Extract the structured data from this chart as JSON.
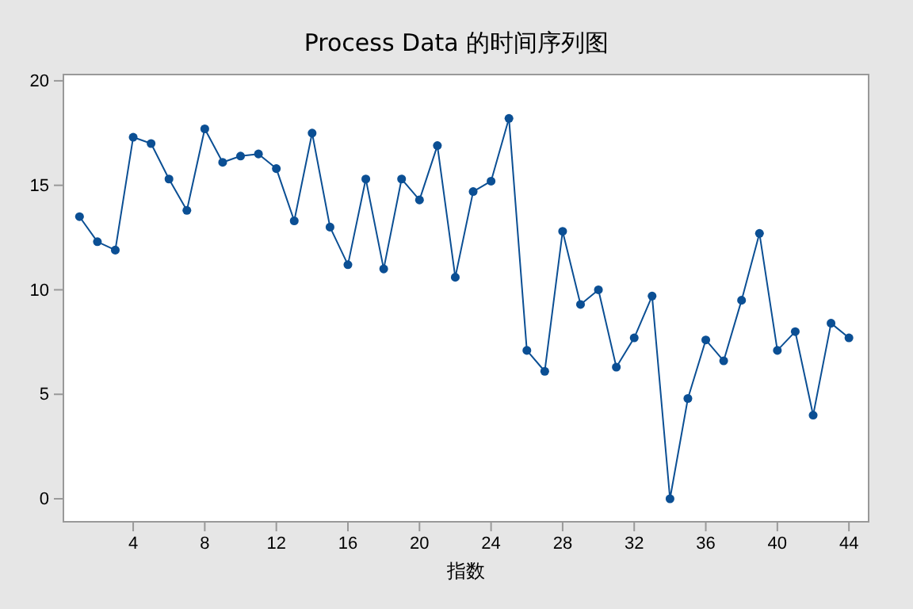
{
  "chart_data": {
    "type": "line",
    "title": "Process Data 的时间序列图",
    "xlabel": "指数",
    "x": [
      1,
      2,
      3,
      4,
      5,
      6,
      7,
      8,
      9,
      10,
      11,
      12,
      13,
      14,
      15,
      16,
      17,
      18,
      19,
      20,
      21,
      22,
      23,
      24,
      25,
      26,
      27,
      28,
      29,
      30,
      31,
      32,
      33,
      34,
      35,
      36,
      37,
      38,
      39,
      40,
      41,
      42,
      43,
      44
    ],
    "series": [
      {
        "color": "#0b4f94",
        "values": [
          13.5,
          12.3,
          11.9,
          17.3,
          17.0,
          15.3,
          13.8,
          17.7,
          16.1,
          16.4,
          16.5,
          15.8,
          13.3,
          17.5,
          13.0,
          11.2,
          15.3,
          11.0,
          15.3,
          14.3,
          16.9,
          10.6,
          14.7,
          15.2,
          18.2,
          7.1,
          6.1,
          12.8,
          9.3,
          10.0,
          6.3,
          7.7,
          9.7,
          0.0,
          4.8,
          7.6,
          6.6,
          9.5,
          12.7,
          7.1,
          8.0,
          4.0,
          8.4,
          7.7
        ]
      }
    ],
    "xlim": [
      0.1,
      45.1
    ],
    "ylim": [
      -1.1,
      20.3
    ],
    "xticks": [
      4,
      8,
      12,
      16,
      20,
      24,
      28,
      32,
      36,
      40,
      44
    ],
    "yticks": [
      0,
      5,
      10,
      15,
      20
    ],
    "marker": "circle",
    "line_style": "solid",
    "grid": false
  }
}
